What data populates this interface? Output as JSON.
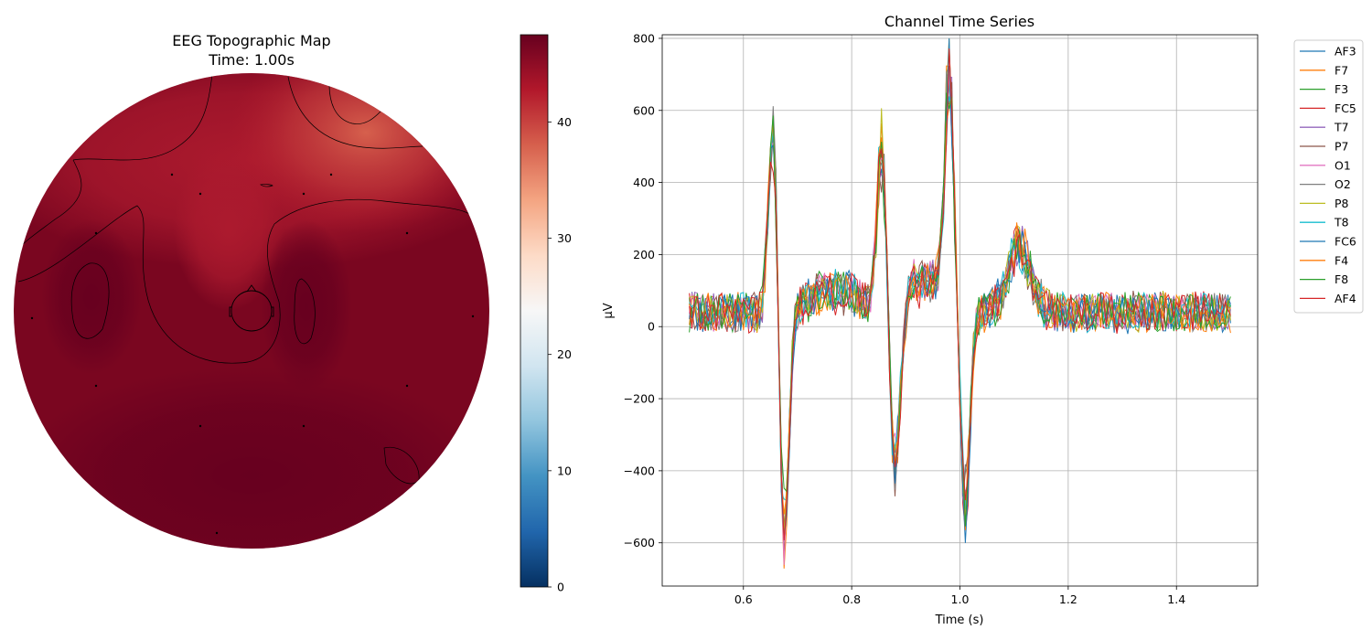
{
  "chart_data": [
    {
      "type": "heatmap",
      "title": "EEG Topographic Map",
      "subtitle": "Time: 1.00s",
      "colormap": "RdBu_r",
      "colorbar": {
        "min": 0,
        "max": 47.5,
        "ticks": [
          0,
          10,
          20,
          30,
          40
        ]
      },
      "contours": true,
      "field_summary": {
        "background_value": 46,
        "high_regions": [
          "left-temporal",
          "center-left",
          "center-right",
          "posterior"
        ],
        "low_region": {
          "location": "top-right",
          "min_value": 37
        }
      }
    },
    {
      "type": "line",
      "title": "Channel Time Series",
      "xlabel": "Time (s)",
      "ylabel": "µV",
      "xlim": [
        0.45,
        1.55
      ],
      "ylim": [
        -720,
        810
      ],
      "xticks": [
        "0.6",
        "0.8",
        "1.0",
        "1.2",
        "1.4"
      ],
      "xtick_values": [
        0.6,
        0.8,
        1.0,
        1.2,
        1.4
      ],
      "yticks": [
        "−600",
        "−400",
        "−200",
        "0",
        "200",
        "400",
        "600",
        "800"
      ],
      "ytick_values": [
        -600,
        -400,
        -200,
        0,
        200,
        400,
        600,
        800
      ],
      "grid": true,
      "legend_position": "outside-right",
      "x_range": [
        0.5,
        1.5
      ],
      "n_samples": 201,
      "envelope_events": [
        {
          "t": 0.655,
          "value": 600
        },
        {
          "t": 0.675,
          "value": -620
        },
        {
          "t": 0.855,
          "value": 500
        },
        {
          "t": 0.88,
          "value": -400
        },
        {
          "t": 0.98,
          "value": 690
        },
        {
          "t": 1.01,
          "value": -500
        },
        {
          "t": 1.11,
          "value": 220
        }
      ],
      "baseline_mean": 40,
      "noise_amplitude": 55,
      "series": [
        {
          "name": "AF3",
          "color": "#1f77b4"
        },
        {
          "name": "F7",
          "color": "#ff7f0e"
        },
        {
          "name": "F3",
          "color": "#2ca02c"
        },
        {
          "name": "FC5",
          "color": "#d62728"
        },
        {
          "name": "T7",
          "color": "#9467bd"
        },
        {
          "name": "P7",
          "color": "#8c564b"
        },
        {
          "name": "O1",
          "color": "#e377c2"
        },
        {
          "name": "O2",
          "color": "#7f7f7f"
        },
        {
          "name": "P8",
          "color": "#bcbd22"
        },
        {
          "name": "T8",
          "color": "#17becf"
        },
        {
          "name": "FC6",
          "color": "#1f77b4"
        },
        {
          "name": "F4",
          "color": "#ff7f0e"
        },
        {
          "name": "F8",
          "color": "#2ca02c"
        },
        {
          "name": "AF4",
          "color": "#d62728"
        }
      ]
    }
  ]
}
